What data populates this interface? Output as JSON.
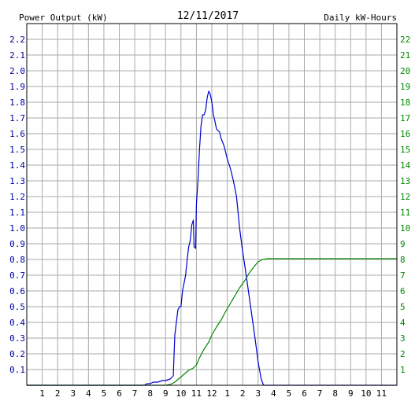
{
  "chart_data": {
    "type": "line",
    "title": "12/11/2017",
    "left_axis_title": "Power Output (kW)",
    "right_axis_title": "Daily kW-Hours",
    "x_tick_labels": [
      "1",
      "2",
      "3",
      "4",
      "5",
      "6",
      "7",
      "8",
      "9",
      "10",
      "11",
      "12",
      "1",
      "2",
      "3",
      "4",
      "5",
      "6",
      "7",
      "8",
      "9",
      "10",
      "11"
    ],
    "y_left_ticks": [
      "0.1",
      "0.2",
      "0.3",
      "0.4",
      "0.5",
      "0.6",
      "0.7",
      "0.8",
      "0.9",
      "1.0",
      "1.1",
      "1.2",
      "1.3",
      "1.4",
      "1.5",
      "1.6",
      "1.7",
      "1.8",
      "1.9",
      "2.0",
      "2.1",
      "2.2"
    ],
    "y_right_ticks": [
      "1",
      "2",
      "3",
      "4",
      "5",
      "6",
      "7",
      "8",
      "9",
      "10",
      "11",
      "12",
      "13",
      "14",
      "15",
      "16",
      "17",
      "18",
      "19",
      "20",
      "21",
      "22"
    ],
    "x_range_hours": [
      0,
      24
    ],
    "y_left_range": [
      0,
      2.3
    ],
    "y_right_range": [
      0,
      23
    ],
    "grid": true,
    "colors": {
      "power_series": "#0000cc",
      "energy_series": "#008800",
      "left_axis_text": "#0000aa",
      "right_axis_text": "#008800",
      "grid": "#aaaaaa"
    },
    "series": [
      {
        "axis": "left",
        "points": [
          [
            0,
            0
          ],
          [
            7.6,
            0
          ],
          [
            7.8,
            0.01
          ],
          [
            8.0,
            0.01
          ],
          [
            8.2,
            0.02
          ],
          [
            8.5,
            0.02
          ],
          [
            8.8,
            0.03
          ],
          [
            9.0,
            0.03
          ],
          [
            9.3,
            0.04
          ],
          [
            9.5,
            0.06
          ],
          [
            9.6,
            0.32
          ],
          [
            9.7,
            0.4
          ],
          [
            9.8,
            0.48
          ],
          [
            9.9,
            0.5
          ],
          [
            10.0,
            0.5
          ],
          [
            10.1,
            0.6
          ],
          [
            10.2,
            0.65
          ],
          [
            10.3,
            0.7
          ],
          [
            10.4,
            0.8
          ],
          [
            10.5,
            0.88
          ],
          [
            10.6,
            0.92
          ],
          [
            10.7,
            1.02
          ],
          [
            10.8,
            1.05
          ],
          [
            10.85,
            0.88
          ],
          [
            10.95,
            0.87
          ],
          [
            11.0,
            1.15
          ],
          [
            11.1,
            1.3
          ],
          [
            11.2,
            1.5
          ],
          [
            11.3,
            1.65
          ],
          [
            11.4,
            1.72
          ],
          [
            11.5,
            1.72
          ],
          [
            11.6,
            1.75
          ],
          [
            11.7,
            1.83
          ],
          [
            11.8,
            1.87
          ],
          [
            11.9,
            1.85
          ],
          [
            12.0,
            1.8
          ],
          [
            12.1,
            1.72
          ],
          [
            12.2,
            1.68
          ],
          [
            12.3,
            1.63
          ],
          [
            12.5,
            1.61
          ],
          [
            12.6,
            1.57
          ],
          [
            12.8,
            1.52
          ],
          [
            13.0,
            1.44
          ],
          [
            13.2,
            1.38
          ],
          [
            13.4,
            1.3
          ],
          [
            13.6,
            1.2
          ],
          [
            13.8,
            1.0
          ],
          [
            14.0,
            0.85
          ],
          [
            14.2,
            0.72
          ],
          [
            14.4,
            0.58
          ],
          [
            14.6,
            0.44
          ],
          [
            14.8,
            0.3
          ],
          [
            15.0,
            0.15
          ],
          [
            15.2,
            0.04
          ],
          [
            15.35,
            0.0
          ],
          [
            24,
            0
          ]
        ]
      },
      {
        "axis": "right",
        "points": [
          [
            0,
            0
          ],
          [
            9.0,
            0
          ],
          [
            9.3,
            0.05
          ],
          [
            9.6,
            0.2
          ],
          [
            9.9,
            0.45
          ],
          [
            10.2,
            0.7
          ],
          [
            10.5,
            0.95
          ],
          [
            10.8,
            1.1
          ],
          [
            11.0,
            1.3
          ],
          [
            11.2,
            1.75
          ],
          [
            11.5,
            2.3
          ],
          [
            11.8,
            2.75
          ],
          [
            12.0,
            3.2
          ],
          [
            12.3,
            3.7
          ],
          [
            12.6,
            4.15
          ],
          [
            12.9,
            4.7
          ],
          [
            13.2,
            5.2
          ],
          [
            13.5,
            5.7
          ],
          [
            13.8,
            6.2
          ],
          [
            14.1,
            6.6
          ],
          [
            14.4,
            7.1
          ],
          [
            14.7,
            7.5
          ],
          [
            15.0,
            7.85
          ],
          [
            15.3,
            8.0
          ],
          [
            15.6,
            8.05
          ],
          [
            24,
            8.05
          ]
        ]
      }
    ]
  }
}
